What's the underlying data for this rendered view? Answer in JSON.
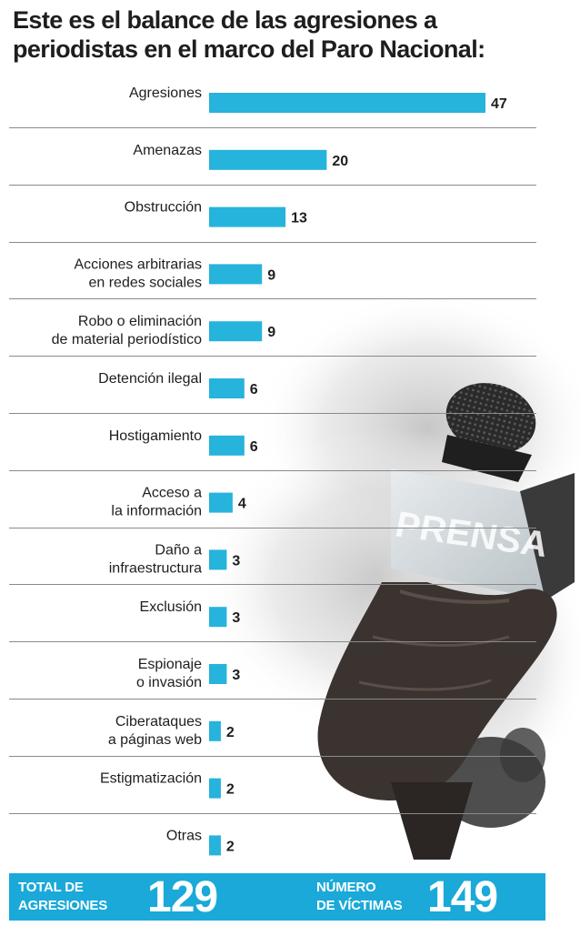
{
  "title": "Este es el balance de las agresiones a periodistas en el marco del Paro Nacional:",
  "chart_data": {
    "type": "bar",
    "orientation": "horizontal",
    "categories": [
      "Agresiones",
      "Amenazas",
      "Obstrucción",
      "Acciones arbitrarias\nen redes sociales",
      "Robo o eliminación\nde material periodístico",
      "Detención ilegal",
      "Hostigamiento",
      "Acceso a\nla información",
      "Daño a\ninfraestructura",
      "Exclusión",
      "Espionaje\no invasión",
      "Ciberataques\na páginas web",
      "Estigmatización",
      "Otras"
    ],
    "values": [
      47,
      20,
      13,
      9,
      9,
      6,
      6,
      4,
      3,
      3,
      3,
      2,
      2,
      2
    ],
    "xlim": [
      0,
      47
    ],
    "bar_color": "#26b3dc",
    "grid": false,
    "data_labels": true
  },
  "footer": {
    "total_label": "TOTAL DE\nAGRESIONES",
    "total_value": "129",
    "victims_label": "NÚMERO\nDE VÍCTIMAS",
    "victims_value": "149",
    "background": "#1aa9d8"
  },
  "illustration": {
    "microphone_flag_text": "PRENSA"
  }
}
